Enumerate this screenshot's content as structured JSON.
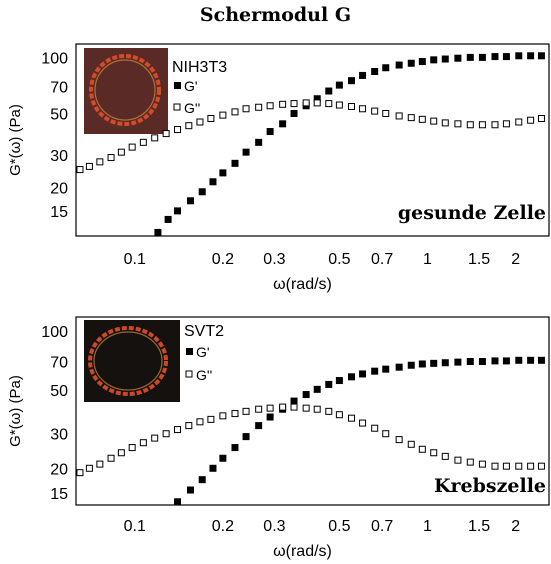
{
  "figure_title": "Schermodul G",
  "chart_data": [
    {
      "type": "scatter",
      "cell_label": "NIH3T3",
      "annotation": "gesunde Zelle",
      "xlabel": "ω(rad/s)",
      "ylabel": "G*(ω) (Pa)",
      "xscale": "log",
      "yscale": "log",
      "xlim": [
        0.063,
        2.6
      ],
      "ylim": [
        11,
        118
      ],
      "xticks": [
        "0.1",
        "0.2",
        "0.3",
        "0.5",
        "0.7",
        "1",
        "1.5",
        "2"
      ],
      "yticks": [
        "100",
        "70",
        "50",
        "30",
        "20",
        "15"
      ],
      "legend": [
        "G'",
        "G''"
      ],
      "series": [
        {
          "name": "G'",
          "marker": "filled-square",
          "x": [
            0.12,
            0.13,
            0.14,
            0.155,
            0.17,
            0.185,
            0.2,
            0.22,
            0.24,
            0.265,
            0.29,
            0.32,
            0.35,
            0.385,
            0.42,
            0.46,
            0.5,
            0.55,
            0.6,
            0.66,
            0.72,
            0.8,
            0.88,
            0.96,
            1.05,
            1.15,
            1.27,
            1.4,
            1.54,
            1.7,
            1.86,
            2.05,
            2.25,
            2.45
          ],
          "y": [
            11.5,
            13.5,
            15,
            17,
            19,
            21.5,
            24,
            27,
            31,
            35,
            40,
            44,
            50,
            55,
            60,
            66,
            71,
            75,
            80,
            84,
            88,
            91,
            93,
            95,
            97,
            98,
            99,
            100,
            100,
            101,
            101,
            102,
            102,
            102
          ]
        },
        {
          "name": "G''",
          "marker": "open-square",
          "x": [
            0.065,
            0.07,
            0.076,
            0.083,
            0.09,
            0.098,
            0.107,
            0.117,
            0.128,
            0.14,
            0.153,
            0.167,
            0.182,
            0.2,
            0.22,
            0.24,
            0.265,
            0.29,
            0.32,
            0.35,
            0.385,
            0.42,
            0.46,
            0.5,
            0.55,
            0.6,
            0.66,
            0.72,
            0.8,
            0.88,
            0.96,
            1.05,
            1.15,
            1.27,
            1.4,
            1.54,
            1.7,
            1.86,
            2.05,
            2.25,
            2.45
          ],
          "y": [
            25,
            26,
            27.5,
            29,
            31,
            33,
            35,
            37,
            39,
            41,
            43,
            45,
            47,
            49,
            51,
            53,
            54,
            55,
            56,
            56.5,
            57,
            57,
            56.5,
            55.5,
            54.5,
            53,
            51.5,
            50,
            48.5,
            47.5,
            46.5,
            45.5,
            44.5,
            44,
            43.5,
            43.5,
            43.5,
            44,
            45,
            46,
            47
          ]
        }
      ]
    },
    {
      "type": "scatter",
      "cell_label": "SVT2",
      "annotation": "Krebszelle",
      "xlabel": "ω(rad/s)",
      "ylabel": "G*(ω) (Pa)",
      "xscale": "log",
      "yscale": "log",
      "xlim": [
        0.063,
        2.6
      ],
      "ylim": [
        13,
        118
      ],
      "xticks": [
        "0.1",
        "0.2",
        "0.3",
        "0.5",
        "0.7",
        "1",
        "1.5",
        "2"
      ],
      "yticks": [
        "100",
        "70",
        "50",
        "30",
        "20",
        "15"
      ],
      "legend": [
        "G'",
        "G''"
      ],
      "series": [
        {
          "name": "G'",
          "marker": "filled-square",
          "x": [
            0.14,
            0.155,
            0.17,
            0.185,
            0.2,
            0.22,
            0.24,
            0.265,
            0.29,
            0.32,
            0.35,
            0.385,
            0.42,
            0.46,
            0.5,
            0.55,
            0.6,
            0.66,
            0.72,
            0.8,
            0.88,
            0.96,
            1.05,
            1.15,
            1.27,
            1.4,
            1.54,
            1.7,
            1.86,
            2.05,
            2.25,
            2.45
          ],
          "y": [
            13.5,
            15.5,
            17.5,
            20,
            22.5,
            25.5,
            29,
            33,
            36.5,
            40,
            44,
            47.5,
            50.5,
            53.5,
            56,
            58.5,
            60.5,
            62.5,
            64,
            65.5,
            67,
            68,
            68.5,
            69,
            69.5,
            70,
            70,
            70.5,
            70.5,
            71,
            71,
            71
          ]
        },
        {
          "name": "G''",
          "marker": "open-square",
          "x": [
            0.065,
            0.07,
            0.076,
            0.083,
            0.09,
            0.098,
            0.107,
            0.117,
            0.128,
            0.14,
            0.153,
            0.167,
            0.182,
            0.2,
            0.22,
            0.24,
            0.265,
            0.29,
            0.32,
            0.35,
            0.385,
            0.42,
            0.46,
            0.5,
            0.55,
            0.6,
            0.66,
            0.72,
            0.8,
            0.88,
            0.96,
            1.05,
            1.15,
            1.27,
            1.4,
            1.54,
            1.7,
            1.86,
            2.05,
            2.25,
            2.45
          ],
          "y": [
            19,
            20,
            21,
            22.5,
            24,
            25.5,
            27,
            28.5,
            30,
            31.5,
            33,
            34.5,
            35.5,
            37,
            38,
            39,
            40,
            40.5,
            41,
            41,
            40.5,
            40,
            39,
            37.5,
            36,
            34,
            32,
            30,
            28,
            26.5,
            25,
            24,
            23,
            22,
            21.5,
            21,
            20.5,
            20.5,
            20.5,
            20.5,
            20.5
          ]
        }
      ]
    }
  ]
}
